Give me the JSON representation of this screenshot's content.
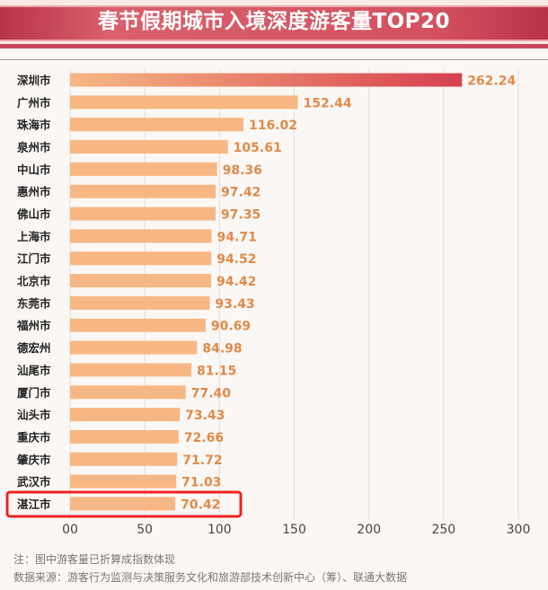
{
  "title": "春节假期城市入境深度游客量TOP20",
  "chart_data": {
    "type": "bar",
    "orientation": "horizontal",
    "title": "春节假期城市入境深度游客量TOP20",
    "categories": [
      "深圳市",
      "广州市",
      "珠海市",
      "泉州市",
      "中山市",
      "惠州市",
      "佛山市",
      "上海市",
      "江门市",
      "北京市",
      "东莞市",
      "福州市",
      "德宏州",
      "汕尾市",
      "厦门市",
      "汕头市",
      "重庆市",
      "肇庆市",
      "武汉市",
      "湛江市"
    ],
    "values": [
      262.24,
      152.44,
      116.02,
      105.61,
      98.36,
      97.42,
      97.35,
      94.71,
      94.52,
      94.42,
      93.43,
      90.69,
      84.98,
      81.15,
      77.4,
      73.43,
      72.66,
      71.72,
      71.03,
      70.42
    ],
    "value_labels": [
      "262.24",
      "152.44",
      "116.02",
      "105.61",
      "98.36",
      "97.42",
      "97.35",
      "94.71",
      "94.52",
      "94.42",
      "93.43",
      "90.69",
      "84.98",
      "81.15",
      "77.40",
      "73.43",
      "72.66",
      "71.72",
      "71.03",
      "70.42"
    ],
    "xticks": [
      "00",
      "50",
      "100",
      "150",
      "200",
      "250",
      "300"
    ],
    "xlim": [
      0,
      300
    ],
    "grid": true,
    "highlight": "湛江市",
    "colors": {
      "bar": "#f7b784",
      "bar_top_end": "#d6404f",
      "label": "#e08a4a",
      "highlight_box": "#ee2222"
    }
  },
  "notes": [
    "注：图中游客量已折算成指数体现",
    "数据来源：游客行为监测与决策服务文化和旅游部技术创新中心（筹）、联通大数据"
  ]
}
